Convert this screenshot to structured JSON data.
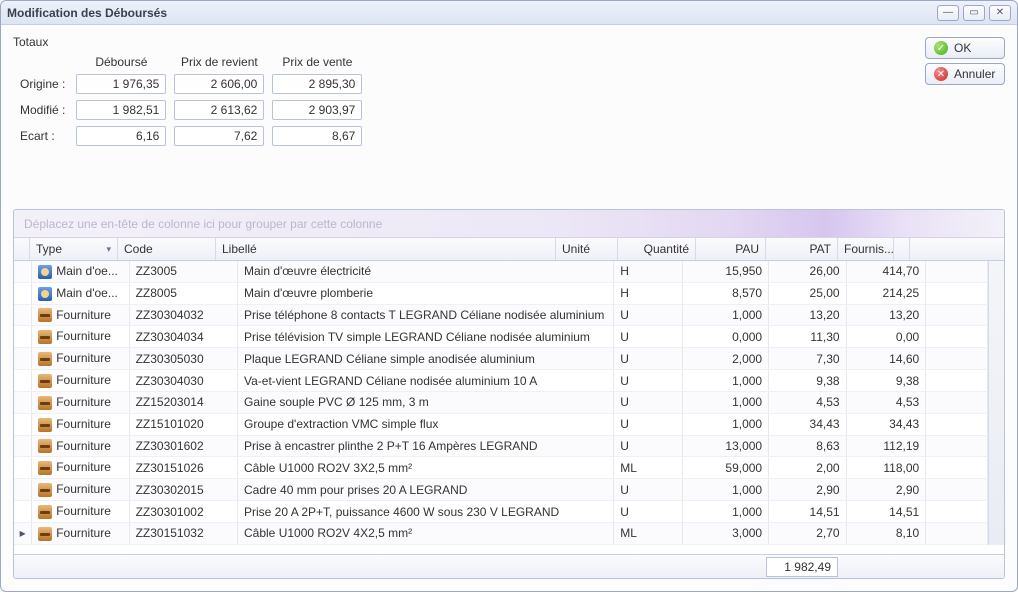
{
  "window": {
    "title": "Modification des Déboursés"
  },
  "actions": {
    "ok": "OK",
    "cancel": "Annuler"
  },
  "totaux": {
    "caption": "Totaux",
    "headers": {
      "debourse": "Déboursé",
      "revient": "Prix de revient",
      "vente": "Prix de vente"
    },
    "rows": {
      "origine": {
        "label": "Origine :",
        "debourse": "1 976,35",
        "revient": "2 606,00",
        "vente": "2 895,30"
      },
      "modifie": {
        "label": "Modifié :",
        "debourse": "1 982,51",
        "revient": "2 613,62",
        "vente": "2 903,97"
      },
      "ecart": {
        "label": "Ecart :",
        "debourse": "6,16",
        "revient": "7,62",
        "vente": "8,67"
      }
    }
  },
  "grid": {
    "group_hint": "Déplacez une en-tête de colonne ici pour grouper par cette colonne",
    "columns": {
      "type": "Type",
      "code": "Code",
      "libelle": "Libellé",
      "unite": "Unité",
      "quantite": "Quantité",
      "pau": "PAU",
      "pat": "PAT",
      "fournisseur": "Fournis..."
    },
    "footer_total": "1 982,49",
    "rows": [
      {
        "icon": "mo",
        "type": "Main d'oe...",
        "code": "ZZ3005",
        "libelle": "Main d'œuvre électricité",
        "unite": "H",
        "qte": "15,950",
        "pau": "26,00",
        "pat": "414,70",
        "current": false
      },
      {
        "icon": "mo",
        "type": "Main d'oe...",
        "code": "ZZ8005",
        "libelle": "Main d'œuvre plomberie",
        "unite": "H",
        "qte": "8,570",
        "pau": "25,00",
        "pat": "214,25",
        "current": false
      },
      {
        "icon": "fo",
        "type": "Fourniture",
        "code": "ZZ30304032",
        "libelle": "Prise téléphone 8 contacts T LEGRAND Céliane nodisée aluminium",
        "unite": "U",
        "qte": "1,000",
        "pau": "13,20",
        "pat": "13,20",
        "current": false
      },
      {
        "icon": "fo",
        "type": "Fourniture",
        "code": "ZZ30304034",
        "libelle": "Prise télévision TV simple LEGRAND Céliane nodisée aluminium",
        "unite": "U",
        "qte": "0,000",
        "pau": "11,30",
        "pat": "0,00",
        "current": false
      },
      {
        "icon": "fo",
        "type": "Fourniture",
        "code": "ZZ30305030",
        "libelle": "Plaque LEGRAND Céliane simple anodisée aluminium",
        "unite": "U",
        "qte": "2,000",
        "pau": "7,30",
        "pat": "14,60",
        "current": false
      },
      {
        "icon": "fo",
        "type": "Fourniture",
        "code": "ZZ30304030",
        "libelle": "Va-et-vient LEGRAND Céliane nodisée aluminium 10 A",
        "unite": "U",
        "qte": "1,000",
        "pau": "9,38",
        "pat": "9,38",
        "current": false
      },
      {
        "icon": "fo",
        "type": "Fourniture",
        "code": "ZZ15203014",
        "libelle": "Gaine souple PVC Ø 125 mm, 3 m",
        "unite": "U",
        "qte": "1,000",
        "pau": "4,53",
        "pat": "4,53",
        "current": false
      },
      {
        "icon": "fo",
        "type": "Fourniture",
        "code": "ZZ15101020",
        "libelle": "Groupe d'extraction VMC simple flux",
        "unite": "U",
        "qte": "1,000",
        "pau": "34,43",
        "pat": "34,43",
        "current": false
      },
      {
        "icon": "fo",
        "type": "Fourniture",
        "code": "ZZ30301602",
        "libelle": "Prise à encastrer plinthe 2 P+T 16 Ampères LEGRAND",
        "unite": "U",
        "qte": "13,000",
        "pau": "8,63",
        "pat": "112,19",
        "current": false
      },
      {
        "icon": "fo",
        "type": "Fourniture",
        "code": "ZZ30151026",
        "libelle": "Câble U1000 RO2V 3X2,5 mm²",
        "unite": "ML",
        "qte": "59,000",
        "pau": "2,00",
        "pat": "118,00",
        "current": false
      },
      {
        "icon": "fo",
        "type": "Fourniture",
        "code": "ZZ30302015",
        "libelle": "Cadre 40 mm pour prises 20 A LEGRAND",
        "unite": "U",
        "qte": "1,000",
        "pau": "2,90",
        "pat": "2,90",
        "current": false
      },
      {
        "icon": "fo",
        "type": "Fourniture",
        "code": "ZZ30301002",
        "libelle": "Prise 20 A 2P+T, puissance 4600 W sous 230 V LEGRAND",
        "unite": "U",
        "qte": "1,000",
        "pau": "14,51",
        "pat": "14,51",
        "current": false
      },
      {
        "icon": "fo",
        "type": "Fourniture",
        "code": "ZZ30151032",
        "libelle": "Câble U1000 RO2V 4X2,5 mm²",
        "unite": "ML",
        "qte": "3,000",
        "pau": "2,70",
        "pat": "8,10",
        "current": true
      }
    ]
  },
  "style": {
    "accent": "#9aa7c7",
    "header_grad_from": "#eef2fa",
    "header_grad_to": "#dde4f2",
    "groupbar_text": "#bcb6cc"
  }
}
